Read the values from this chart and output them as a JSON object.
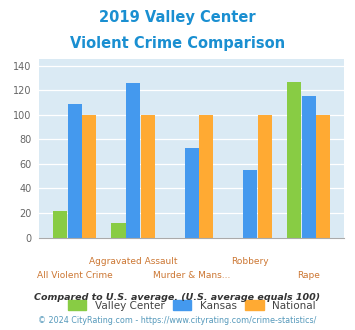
{
  "title_line1": "2019 Valley Center",
  "title_line2": "Violent Crime Comparison",
  "title_color": "#1a8fd1",
  "categories": [
    "All Violent Crime",
    "Aggravated Assault",
    "Murder & Mans...",
    "Robbery",
    "Rape"
  ],
  "valley_center": [
    22,
    12,
    0,
    0,
    127
  ],
  "kansas": [
    109,
    126,
    73,
    55,
    115
  ],
  "national": [
    100,
    100,
    100,
    100,
    100
  ],
  "colors": {
    "valley_center": "#88cc44",
    "kansas": "#4499ee",
    "national": "#ffaa33"
  },
  "ylim": [
    0,
    145
  ],
  "yticks": [
    0,
    20,
    40,
    60,
    80,
    100,
    120,
    140
  ],
  "plot_bg": "#daeaf4",
  "footnote1": "Compared to U.S. average. (U.S. average equals 100)",
  "footnote2": "© 2024 CityRating.com - https://www.cityrating.com/crime-statistics/",
  "footnote1_color": "#333333",
  "footnote2_color": "#5599bb",
  "xlabel_color": "#cc7733",
  "tick_color": "#666666"
}
